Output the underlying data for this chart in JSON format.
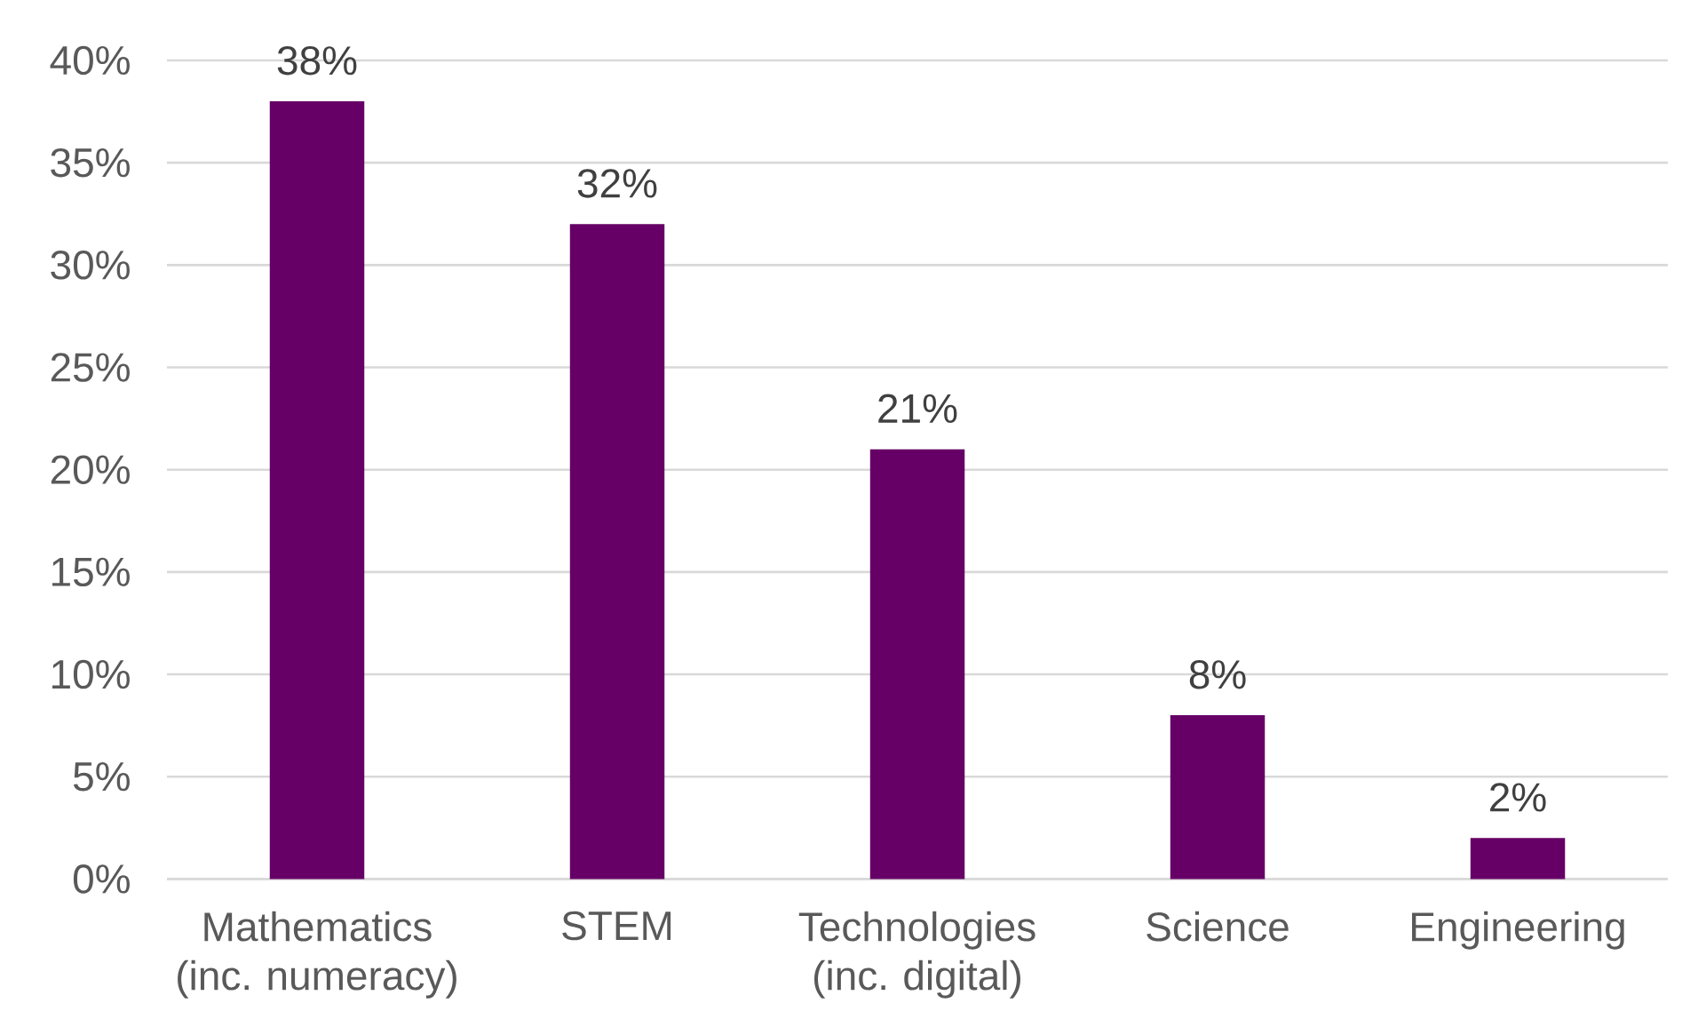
{
  "chart_data": {
    "type": "bar",
    "categories": [
      "Mathematics (inc. numeracy)",
      "STEM",
      "Technologies (inc. digital)",
      "Science",
      "Engineering"
    ],
    "values": [
      38,
      32,
      21,
      8,
      2
    ],
    "value_labels": [
      "38%",
      "32%",
      "21%",
      "8%",
      "2%"
    ],
    "color": "#660066",
    "ylim": [
      0,
      40
    ],
    "yticks": [
      {
        "value": 0,
        "label": "0%"
      },
      {
        "value": 5,
        "label": "5%"
      },
      {
        "value": 10,
        "label": "10%"
      },
      {
        "value": 15,
        "label": "15%"
      },
      {
        "value": 20,
        "label": "20%"
      },
      {
        "value": 25,
        "label": "25%"
      },
      {
        "value": 30,
        "label": "30%"
      },
      {
        "value": 35,
        "label": "35%"
      },
      {
        "value": 40,
        "label": "40%"
      }
    ],
    "grid": "y"
  }
}
